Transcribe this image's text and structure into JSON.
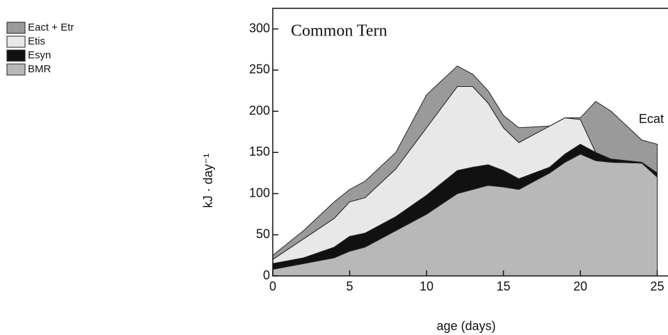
{
  "chart_data": {
    "type": "stacked_area",
    "annotations": [
      "Common Tern",
      "Ecat"
    ],
    "xlabel": "age (days)",
    "ylabel": "kJ · day⁻¹",
    "x": [
      0,
      2,
      4,
      5,
      6,
      8,
      10,
      12,
      13,
      14,
      15,
      16,
      18,
      19,
      20,
      21,
      22,
      24,
      25
    ],
    "series": [
      {
        "name": "BMR",
        "color": "#b8b8b8",
        "values": [
          8,
          15,
          22,
          30,
          35,
          55,
          75,
          100,
          105,
          110,
          108,
          105,
          125,
          138,
          148,
          140,
          138,
          137,
          120
        ]
      },
      {
        "name": "Esyn",
        "color": "#111111",
        "values": [
          7,
          7,
          13,
          18,
          17,
          17,
          23,
          28,
          27,
          25,
          20,
          13,
          7,
          10,
          12,
          10,
          4,
          1,
          5
        ]
      },
      {
        "name": "Etis",
        "color": "#e8e8e8",
        "values": [
          5,
          23,
          35,
          42,
          43,
          58,
          82,
          102,
          98,
          75,
          52,
          44,
          50,
          44,
          30,
          0,
          0,
          0,
          0
        ]
      },
      {
        "name": "Eact + Etr",
        "color": "#9a9a9a",
        "values": [
          5,
          10,
          20,
          15,
          20,
          20,
          40,
          25,
          15,
          15,
          15,
          18,
          0,
          0,
          2,
          62,
          58,
          27,
          35
        ]
      }
    ],
    "xlim": [
      0,
      25.7
    ],
    "xticks": [
      0,
      5,
      10,
      15,
      20,
      25
    ],
    "ylim": [
      0,
      325
    ],
    "yticks": [
      0,
      50,
      100,
      150,
      200,
      250,
      300
    ]
  }
}
